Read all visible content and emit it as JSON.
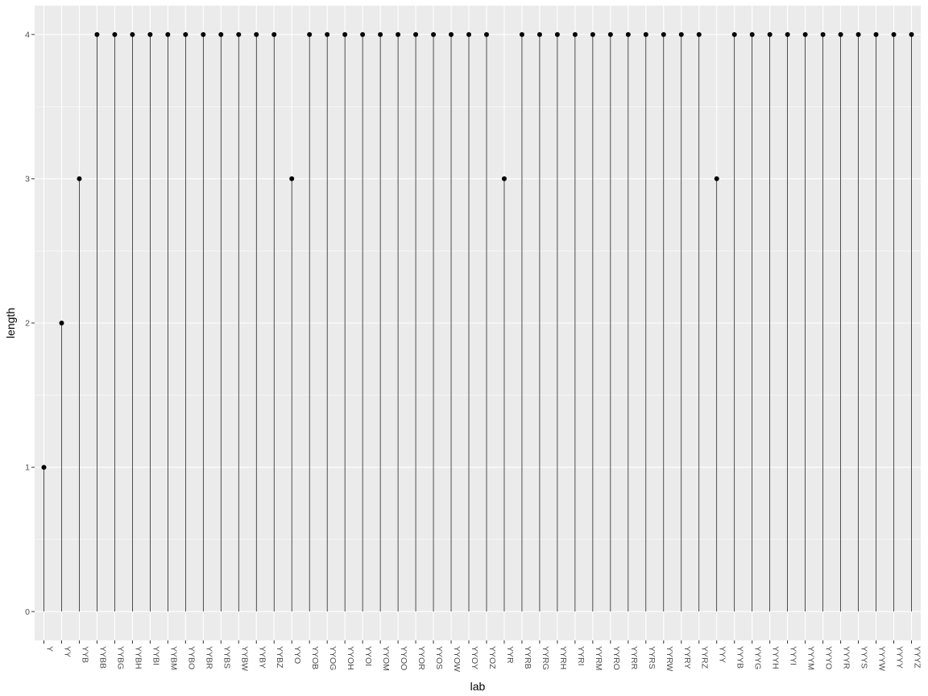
{
  "chart_data": {
    "type": "lollipop",
    "xlabel": "lab",
    "ylabel": "length",
    "ylim": [
      -0.2,
      4.2
    ],
    "yticks": [
      0,
      1,
      2,
      3,
      4
    ],
    "grid": true,
    "legend": "none",
    "categories": [
      "Y",
      "YY",
      "YYB",
      "YYBB",
      "YYBG",
      "YYBH",
      "YYBI",
      "YYBM",
      "YYBO",
      "YYBR",
      "YYBS",
      "YYBW",
      "YYBY",
      "YYBZ",
      "YYO",
      "YYOB",
      "YYOG",
      "YYOH",
      "YYOI",
      "YYOM",
      "YYOO",
      "YYOR",
      "YYOS",
      "YYOW",
      "YYOY",
      "YYOZ",
      "YYR",
      "YYRB",
      "YYRG",
      "YYRH",
      "YYRI",
      "YYRM",
      "YYRO",
      "YYRR",
      "YYRS",
      "YYRW",
      "YYRY",
      "YYRZ",
      "YYY",
      "YYYB",
      "YYYG",
      "YYYH",
      "YYYI",
      "YYYM",
      "YYYO",
      "YYYR",
      "YYYS",
      "YYYW",
      "YYYY",
      "YYYZ"
    ],
    "values": [
      1,
      2,
      3,
      4,
      4,
      4,
      4,
      4,
      4,
      4,
      4,
      4,
      4,
      4,
      3,
      4,
      4,
      4,
      4,
      4,
      4,
      4,
      4,
      4,
      4,
      4,
      3,
      4,
      4,
      4,
      4,
      4,
      4,
      4,
      4,
      4,
      4,
      4,
      3,
      4,
      4,
      4,
      4,
      4,
      4,
      4,
      4,
      4,
      4,
      4
    ],
    "colors": {
      "panel": "#ebebeb",
      "grid_major": "#ffffff",
      "segment": "#000000",
      "point": "#000000"
    }
  }
}
